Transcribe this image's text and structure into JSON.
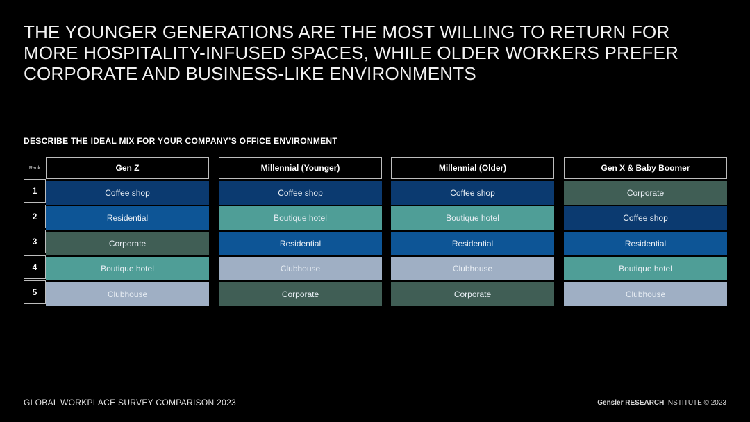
{
  "headline": {
    "line1": "THE YOUNGER GENERATIONS ARE THE MOST WILLING TO RETURN FOR",
    "line2": "MORE HOSPITALITY-INFUSED SPACES, WHILE OLDER WORKERS PREFER",
    "line3": "CORPORATE AND BUSINESS-LIKE ENVIRONMENTS"
  },
  "subtitle": "DESCRIBE THE IDEAL MIX FOR YOUR COMPANY’S OFFICE ENVIRONMENT",
  "rank": {
    "header": "Rank",
    "values": [
      "1",
      "2",
      "3",
      "4",
      "5"
    ]
  },
  "colors": {
    "Coffee shop": "#0b3a70",
    "Residential": "#0d5596",
    "Corporate": "#405e55",
    "Boutique hotel": "#4f9e97",
    "Clubhouse": "#9fafc4"
  },
  "groups": [
    {
      "name": "Gen Z",
      "items": [
        "Coffee shop",
        "Residential",
        "Corporate",
        "Boutique hotel",
        "Clubhouse"
      ]
    },
    {
      "name": "Millennial (Younger)",
      "items": [
        "Coffee shop",
        "Boutique hotel",
        "Residential",
        "Clubhouse",
        "Corporate"
      ]
    },
    {
      "name": "Millennial (Older)",
      "items": [
        "Coffee shop",
        "Boutique hotel",
        "Residential",
        "Clubhouse",
        "Corporate"
      ]
    },
    {
      "name": "Gen X & Baby Boomer",
      "items": [
        "Corporate",
        "Coffee shop",
        "Residential",
        "Boutique hotel",
        "Clubhouse"
      ]
    }
  ],
  "footer": {
    "left": "GLOBAL WORKPLACE SURVEY COMPARISON 2023",
    "brand": "Gensler RESEARCH",
    "suffix": " INSTITUTE © 2023"
  }
}
